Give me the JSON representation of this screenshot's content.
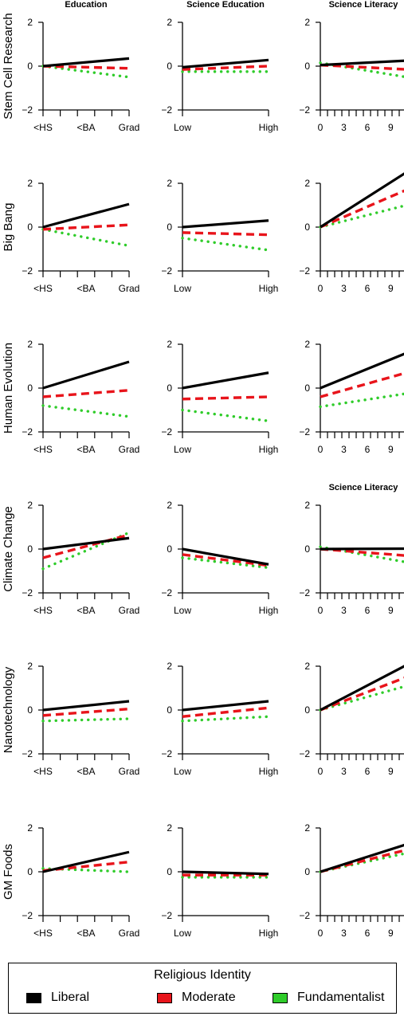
{
  "chart_data": {
    "type": "line",
    "columns": [
      {
        "title": "Education",
        "ticks": [
          "<HS",
          "<BA",
          "Grad"
        ]
      },
      {
        "title": "Science Education",
        "ticks": [
          "Low",
          "High"
        ]
      },
      {
        "title": "Science Literacy",
        "ticks": [
          "0",
          "3",
          "6",
          "9"
        ]
      }
    ],
    "row4_col3_title": "Science Literacy",
    "y_ticks": [
      "2",
      "0",
      "−2"
    ],
    "ylim": [
      -2,
      2
    ],
    "rows": [
      {
        "label": "Stem Cell Research",
        "panels": [
          {
            "liberal": [
              0,
              0.35
            ],
            "moderate": [
              0,
              -0.1
            ],
            "fundamentalist": [
              0,
              -0.5
            ]
          },
          {
            "liberal": [
              -0.05,
              0.28
            ],
            "moderate": [
              -0.15,
              0.0
            ],
            "fundamentalist": [
              -0.25,
              -0.25
            ]
          },
          {
            "liberal": [
              0.05,
              0.25
            ],
            "moderate": [
              0.05,
              -0.15
            ],
            "fundamentalist": [
              0.15,
              -0.5
            ]
          }
        ]
      },
      {
        "label": "Big Bang",
        "panels": [
          {
            "liberal": [
              0,
              1.05
            ],
            "moderate": [
              -0.1,
              0.1
            ],
            "fundamentalist": [
              -0.1,
              -0.85
            ]
          },
          {
            "liberal": [
              0,
              0.3
            ],
            "moderate": [
              -0.25,
              -0.35
            ],
            "fundamentalist": [
              -0.5,
              -1.05
            ]
          },
          {
            "liberal": [
              0,
              2.5
            ],
            "moderate": [
              0,
              1.7
            ],
            "fundamentalist": [
              0,
              1.0
            ]
          }
        ]
      },
      {
        "label": "Human Evolution",
        "panels": [
          {
            "liberal": [
              0,
              1.2
            ],
            "moderate": [
              -0.4,
              -0.1
            ],
            "fundamentalist": [
              -0.8,
              -1.3
            ]
          },
          {
            "liberal": [
              0,
              0.7
            ],
            "moderate": [
              -0.5,
              -0.4
            ],
            "fundamentalist": [
              -1.0,
              -1.5
            ]
          },
          {
            "liberal": [
              0,
              1.6
            ],
            "moderate": [
              -0.4,
              0.7
            ],
            "fundamentalist": [
              -0.85,
              -0.25
            ]
          }
        ]
      },
      {
        "label": "Climate Change",
        "panels": [
          {
            "liberal": [
              0,
              0.5
            ],
            "moderate": [
              -0.4,
              0.65
            ],
            "fundamentalist": [
              -0.9,
              0.75
            ]
          },
          {
            "liberal": [
              0,
              -0.7
            ],
            "moderate": [
              -0.25,
              -0.75
            ],
            "fundamentalist": [
              -0.4,
              -0.85
            ]
          },
          {
            "liberal": [
              0,
              0.02
            ],
            "moderate": [
              0,
              -0.3
            ],
            "fundamentalist": [
              0.1,
              -0.6
            ]
          }
        ]
      },
      {
        "label": "Nanotechnology",
        "panels": [
          {
            "liberal": [
              0,
              0.4
            ],
            "moderate": [
              -0.25,
              0.05
            ],
            "fundamentalist": [
              -0.5,
              -0.4
            ]
          },
          {
            "liberal": [
              0,
              0.4
            ],
            "moderate": [
              -0.3,
              0.1
            ],
            "fundamentalist": [
              -0.5,
              -0.3
            ]
          },
          {
            "liberal": [
              0,
              2.05
            ],
            "moderate": [
              0,
              1.5
            ],
            "fundamentalist": [
              0,
              1.1
            ]
          }
        ]
      },
      {
        "label": "GM Foods",
        "panels": [
          {
            "liberal": [
              0,
              0.9
            ],
            "moderate": [
              0.05,
              0.45
            ],
            "fundamentalist": [
              0.15,
              0.0
            ]
          },
          {
            "liberal": [
              0,
              -0.1
            ],
            "moderate": [
              -0.15,
              -0.15
            ],
            "fundamentalist": [
              -0.25,
              -0.25
            ]
          },
          {
            "liberal": [
              0,
              1.25
            ],
            "moderate": [
              0,
              1.0
            ],
            "fundamentalist": [
              0,
              0.85
            ]
          }
        ]
      }
    ],
    "legend": {
      "title": "Religious Identity",
      "entries": [
        {
          "name": "Liberal",
          "color": "#000000",
          "style": "solid"
        },
        {
          "name": "Moderate",
          "color": "#e8141b",
          "style": "dashed"
        },
        {
          "name": "Fundamentalist",
          "color": "#2fcc2a",
          "style": "dotted"
        }
      ]
    }
  }
}
